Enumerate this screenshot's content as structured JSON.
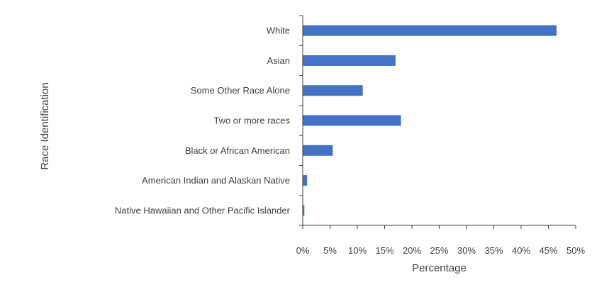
{
  "chart_data": {
    "type": "bar",
    "orientation": "horizontal",
    "categories": [
      "White",
      "Asian",
      "Some Other Race Alone",
      "Two or more races",
      "Black or African American",
      "American Indian and Alaskan Native",
      "Native Hawaiian and Other Pacific Islander"
    ],
    "values": [
      46.5,
      17.0,
      11.0,
      18.0,
      5.5,
      0.8,
      0.3
    ],
    "xlabel": "Percentage",
    "ylabel": "Race Identification",
    "xlim": [
      0,
      50
    ],
    "xticks": [
      "0%",
      "5%",
      "10%",
      "15%",
      "20%",
      "25%",
      "30%",
      "35%",
      "40%",
      "45%",
      "50%"
    ],
    "grid": false,
    "legend": "none",
    "bar_color": "#4472C4",
    "axis_color": "#404040"
  }
}
